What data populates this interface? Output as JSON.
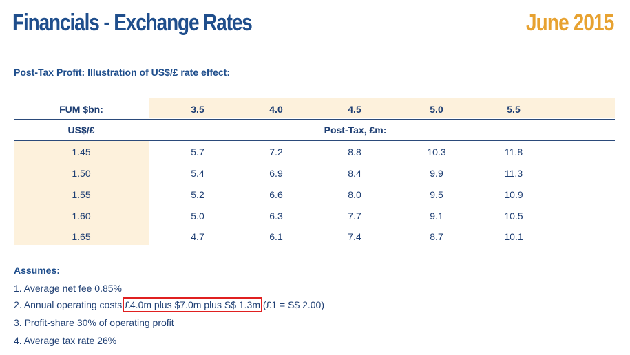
{
  "header": {
    "title": "Financials - Exchange Rates",
    "date": "June 2015"
  },
  "subtitle": "Post-Tax Profit: Illustration of US$/£ rate effect:",
  "table": {
    "fum_label": "FUM $bn:",
    "fum_values": [
      "3.5",
      "4.0",
      "4.5",
      "5.0",
      "5.5"
    ],
    "rate_label": "US$/£",
    "posttax_label": "Post-Tax, £m:",
    "rows": [
      {
        "rate": "1.45",
        "values": [
          "5.7",
          "7.2",
          "8.8",
          "10.3",
          "11.8"
        ]
      },
      {
        "rate": "1.50",
        "values": [
          "5.4",
          "6.9",
          "8.4",
          "9.9",
          "11.3"
        ]
      },
      {
        "rate": "1.55",
        "values": [
          "5.2",
          "6.6",
          "8.0",
          "9.5",
          "10.9"
        ]
      },
      {
        "rate": "1.60",
        "values": [
          "5.0",
          "6.3",
          "7.7",
          "9.1",
          "10.5"
        ]
      },
      {
        "rate": "1.65",
        "values": [
          "4.7",
          "6.1",
          "7.4",
          "8.7",
          "10.1"
        ]
      }
    ]
  },
  "assumes": {
    "heading": "Assumes:",
    "item1": "1. Average net fee 0.85%",
    "item2_prefix": "2. Annual operating costs ",
    "item2_highlight": "£4.0m plus $7.0m plus S$ 1.3m",
    "item2_suffix": " (£1 = S$ 2.00)",
    "item3": "3. Profit-share 30% of operating profit",
    "item4": "4. Average tax rate 26%"
  }
}
